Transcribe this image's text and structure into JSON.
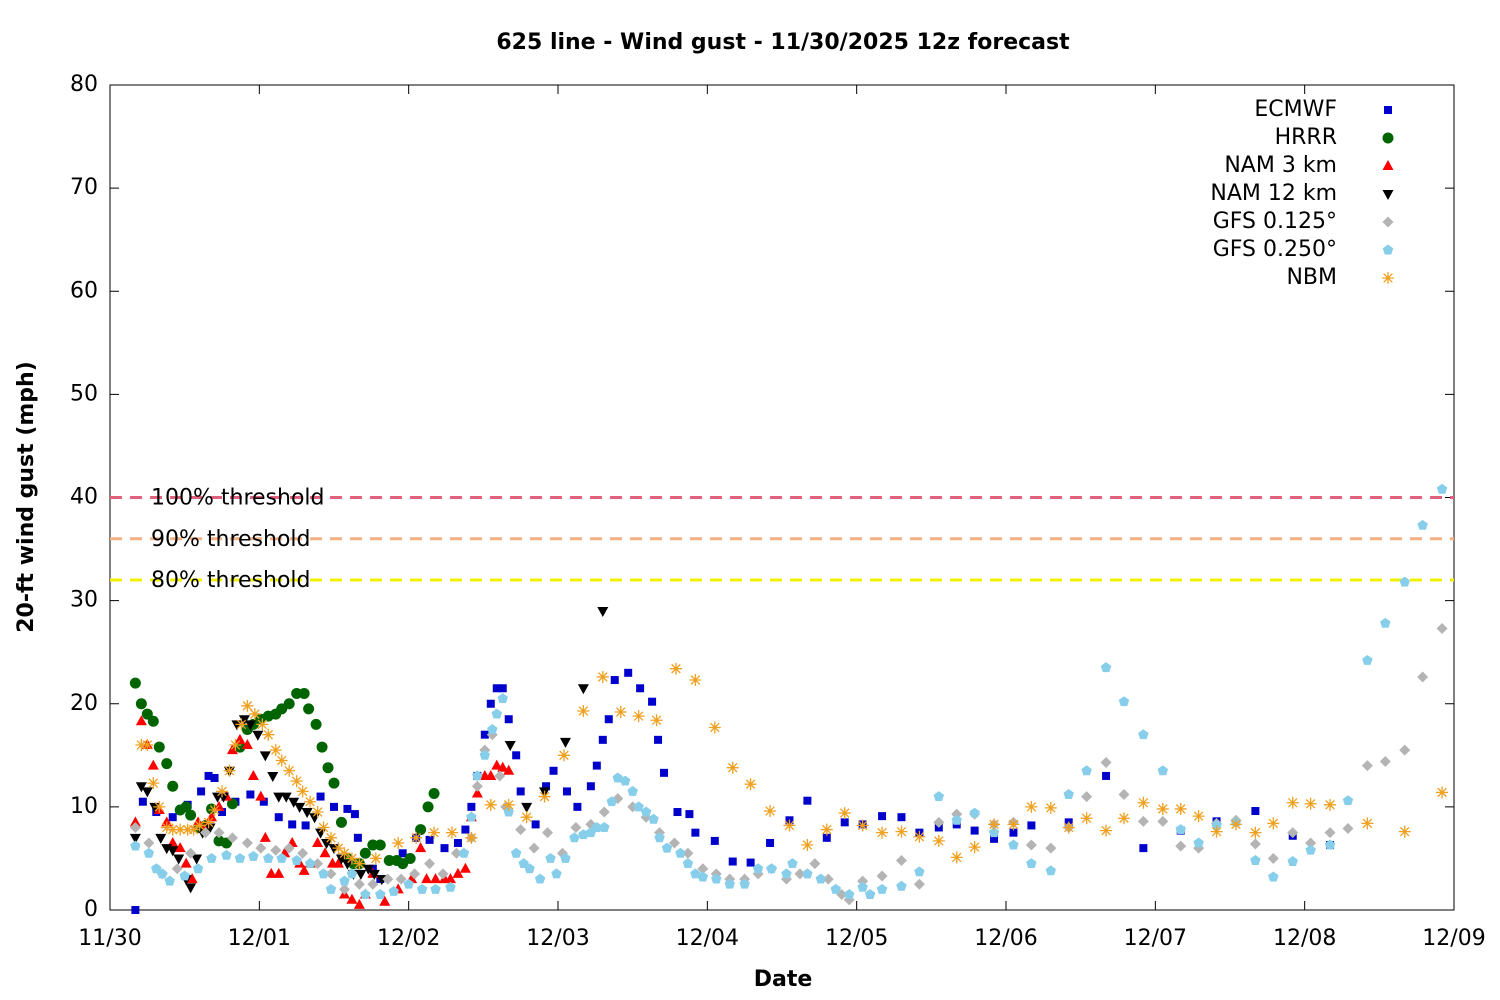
{
  "chart_data": {
    "type": "scatter",
    "title": "625 line - Wind gust - 11/30/2025 12z forecast",
    "xlabel": "Date",
    "ylabel": "20-ft wind gust (mph)",
    "xlim": [
      0,
      9
    ],
    "xticks": [
      {
        "value": 0,
        "label": "11/30"
      },
      {
        "value": 1,
        "label": "12/01"
      },
      {
        "value": 2,
        "label": "12/02"
      },
      {
        "value": 3,
        "label": "12/03"
      },
      {
        "value": 4,
        "label": "12/04"
      },
      {
        "value": 5,
        "label": "12/05"
      },
      {
        "value": 6,
        "label": "12/06"
      },
      {
        "value": 7,
        "label": "12/07"
      },
      {
        "value": 8,
        "label": "12/08"
      },
      {
        "value": 9,
        "label": "12/09"
      }
    ],
    "ylim": [
      0,
      80
    ],
    "yticks": [
      0,
      10,
      20,
      30,
      40,
      50,
      60,
      70,
      80
    ],
    "legend": "upper right",
    "thresholds": [
      {
        "label": "100% threshold",
        "value": 40,
        "color": "#e0607e"
      },
      {
        "label": "90% threshold",
        "value": 36,
        "color": "#f4b183"
      },
      {
        "label": "80% threshold",
        "value": 32,
        "color": "#f0f000"
      }
    ],
    "series": [
      {
        "name": "ECMWF",
        "color": "#0000cc",
        "marker": "square",
        "x": [
          0.17,
          0.22,
          0.31,
          0.42,
          0.52,
          0.61,
          0.66,
          0.7,
          0.75,
          0.84,
          0.94,
          1.03,
          1.13,
          1.22,
          1.31,
          1.41,
          1.5,
          1.59,
          1.64,
          1.66,
          1.76,
          1.81,
          1.96,
          2.05,
          2.14,
          2.24,
          2.33,
          2.38,
          2.42,
          2.46,
          2.51,
          2.55,
          2.59,
          2.63,
          2.67,
          2.72,
          2.75,
          2.85,
          2.92,
          2.97,
          3.06,
          3.13,
          3.22,
          3.26,
          3.3,
          3.34,
          3.38,
          3.47,
          3.55,
          3.63,
          3.67,
          3.71,
          3.8,
          3.88,
          3.92,
          4.05,
          4.17,
          4.29,
          4.42,
          4.55,
          4.67,
          4.8,
          4.92,
          5.04,
          5.17,
          5.3,
          5.42,
          5.55,
          5.67,
          5.79,
          5.92,
          6.05,
          6.17,
          6.42,
          6.67,
          6.92,
          7.17,
          7.41,
          7.67,
          7.92,
          8.17
        ],
        "values": [
          0,
          10.5,
          9.5,
          9,
          10.2,
          11.5,
          13,
          12.8,
          9.5,
          10.5,
          11.2,
          10.5,
          9,
          8.3,
          8.2,
          11,
          10,
          9.8,
          9.3,
          7,
          4,
          3,
          5.5,
          7,
          6.8,
          6,
          6.5,
          7.8,
          10,
          13,
          17,
          20,
          21.5,
          21.5,
          18.5,
          15,
          11.5,
          8.3,
          12,
          13.5,
          11.5,
          10,
          12,
          14,
          16.5,
          18.5,
          22.3,
          23,
          21.5,
          20.2,
          16.5,
          13.3,
          9.5,
          9.3,
          7.5,
          6.7,
          4.7,
          4.6,
          6.5,
          8.7,
          10.6,
          7,
          8.5,
          8.3,
          9.1,
          9,
          7.5,
          8,
          8.3,
          7.7,
          6.9,
          7.5,
          8.2,
          8.5,
          13,
          6,
          7.7,
          8.6,
          9.6,
          7.2,
          6.3
        ]
      },
      {
        "name": "HRRR",
        "color": "#006400",
        "marker": "circle",
        "x": [
          0.17,
          0.21,
          0.25,
          0.29,
          0.33,
          0.38,
          0.42,
          0.47,
          0.51,
          0.54,
          0.59,
          0.64,
          0.68,
          0.73,
          0.78,
          0.82,
          0.87,
          0.92,
          0.96,
          1.01,
          1.06,
          1.11,
          1.15,
          1.2,
          1.25,
          1.3,
          1.33,
          1.38,
          1.42,
          1.46,
          1.5,
          1.55,
          1.59,
          1.63,
          1.67,
          1.71,
          1.76,
          1.81,
          1.87,
          1.92,
          1.96,
          2.01,
          2.08,
          2.13,
          2.17
        ],
        "values": [
          22,
          20,
          19,
          18.3,
          15.8,
          14.2,
          12,
          9.7,
          10,
          9.2,
          8,
          8.2,
          9.8,
          6.7,
          6.5,
          10.3,
          15.8,
          17.5,
          18,
          18.5,
          18.8,
          19,
          19.5,
          20,
          21,
          21,
          19.5,
          18,
          15.8,
          13.8,
          12.3,
          8.5,
          5,
          4.5,
          4.5,
          5.5,
          6.3,
          6.3,
          4.8,
          4.8,
          4.5,
          5,
          7.8,
          10,
          11.3
        ]
      },
      {
        "name": "NAM 3 km",
        "color": "#ff0000",
        "marker": "triangle-up",
        "x": [
          0.17,
          0.21,
          0.25,
          0.29,
          0.33,
          0.38,
          0.42,
          0.47,
          0.51,
          0.55,
          0.59,
          0.64,
          0.68,
          0.73,
          0.78,
          0.82,
          0.87,
          0.92,
          0.96,
          1.01,
          1.04,
          1.08,
          1.13,
          1.17,
          1.22,
          1.27,
          1.3,
          1.34,
          1.39,
          1.44,
          1.49,
          1.53,
          1.57,
          1.62,
          1.67,
          1.71,
          1.76,
          1.84,
          1.93,
          2.02,
          2.08,
          2.12,
          2.18,
          2.24,
          2.28,
          2.33,
          2.38,
          2.42,
          2.46,
          2.51,
          2.55,
          2.59,
          2.63,
          2.67
        ],
        "values": [
          8.5,
          18.3,
          16,
          14,
          9.7,
          8.5,
          6.5,
          6,
          4.5,
          3,
          8.5,
          8,
          9,
          10,
          11,
          15.5,
          16.5,
          16,
          13,
          11,
          7,
          3.5,
          3.5,
          5.5,
          6.5,
          4.5,
          3.8,
          4.5,
          6.5,
          5.5,
          4.5,
          4.5,
          1.5,
          1,
          0.5,
          1.5,
          3.5,
          0.8,
          2,
          3,
          6,
          3,
          3,
          3,
          3,
          3.5,
          4,
          9,
          11.3,
          13,
          13,
          14,
          13.8,
          13.5
        ]
      },
      {
        "name": "NAM 12 km",
        "color": "#000000",
        "marker": "triangle-down",
        "x": [
          0.17,
          0.21,
          0.25,
          0.3,
          0.34,
          0.38,
          0.42,
          0.46,
          0.51,
          0.54,
          0.58,
          0.62,
          0.67,
          0.72,
          0.76,
          0.8,
          0.85,
          0.9,
          0.94,
          0.99,
          1.04,
          1.09,
          1.13,
          1.18,
          1.23,
          1.27,
          1.32,
          1.37,
          1.41,
          1.45,
          1.5,
          1.55,
          1.59,
          1.63,
          1.68,
          1.73,
          1.77,
          1.82,
          2.68,
          2.79,
          2.91,
          3.05,
          3.17,
          3.3
        ],
        "values": [
          7,
          12,
          11.5,
          10,
          7,
          6,
          5.8,
          5,
          3,
          2.2,
          5,
          7.5,
          8,
          11,
          11,
          13.5,
          18,
          18.5,
          18,
          17,
          15,
          13,
          11,
          11,
          10.5,
          10,
          9.5,
          9,
          7.5,
          6.5,
          6,
          5,
          4.5,
          3.5,
          3.5,
          4,
          3.5,
          3,
          16,
          10,
          11.5,
          16.3,
          21.5,
          29
        ]
      },
      {
        "name": "GFS 0.125°",
        "color": "#b4b4b4",
        "marker": "diamond",
        "x": [
          0.17,
          0.26,
          0.35,
          0.45,
          0.54,
          0.64,
          0.73,
          0.82,
          0.92,
          1.01,
          1.11,
          1.2,
          1.29,
          1.39,
          1.48,
          1.57,
          1.67,
          1.76,
          1.86,
          1.95,
          2.04,
          2.14,
          2.23,
          2.32,
          2.42,
          2.46,
          2.51,
          2.56,
          2.61,
          2.65,
          2.75,
          2.84,
          2.93,
          3.03,
          3.12,
          3.22,
          3.31,
          3.4,
          3.5,
          3.59,
          3.68,
          3.78,
          3.87,
          3.97,
          4.06,
          4.15,
          4.25,
          4.34,
          4.43,
          4.53,
          4.62,
          4.72,
          4.81,
          4.9,
          4.95,
          5.04,
          5.17,
          5.3,
          5.42,
          5.55,
          5.67,
          5.79,
          5.92,
          6.05,
          6.17,
          6.3,
          6.42,
          6.54,
          6.67,
          6.79,
          6.92,
          7.05,
          7.17,
          7.29,
          7.41,
          7.54,
          7.67,
          7.79,
          7.92,
          8.04,
          8.17,
          8.29,
          8.42,
          8.54,
          8.67,
          8.79,
          8.92
        ],
        "values": [
          8,
          6.5,
          3.5,
          4,
          5.5,
          7.5,
          7.5,
          7,
          6.5,
          6,
          5.8,
          6,
          5.5,
          4.5,
          3.5,
          2,
          2.5,
          2.5,
          3,
          3,
          3.5,
          4.5,
          3.5,
          5.5,
          7,
          12,
          15.5,
          17,
          13,
          10,
          7.8,
          6,
          7.5,
          5.5,
          8,
          8.3,
          9.5,
          10.8,
          10,
          9,
          7.5,
          6.5,
          5.5,
          4,
          3.5,
          3,
          3,
          3.5,
          4,
          3,
          3.5,
          4.5,
          3,
          1.5,
          1,
          2.8,
          3.3,
          4.8,
          2.5,
          8.5,
          9.3,
          9.3,
          8.3,
          8.5,
          6.3,
          6,
          8,
          11,
          14.3,
          11.2,
          8.6,
          8.6,
          6.2,
          6,
          8.4,
          8.7,
          6.4,
          5,
          7.5,
          6.5,
          7.5,
          7.9,
          14,
          14.4,
          15.5,
          22.6,
          27.3
        ]
      },
      {
        "name": "GFS 0.250°",
        "color": "#87ceeb",
        "marker": "pentagon",
        "x": [
          0.17,
          0.26,
          0.31,
          0.35,
          0.4,
          0.5,
          0.59,
          0.68,
          0.78,
          0.87,
          0.96,
          1.06,
          1.15,
          1.25,
          1.34,
          1.43,
          1.48,
          1.57,
          1.62,
          1.71,
          1.81,
          1.9,
          2.0,
          2.09,
          2.18,
          2.28,
          2.37,
          2.42,
          2.46,
          2.51,
          2.56,
          2.59,
          2.63,
          2.67,
          2.72,
          2.77,
          2.81,
          2.88,
          2.95,
          2.99,
          3.05,
          3.11,
          3.17,
          3.22,
          3.26,
          3.31,
          3.36,
          3.4,
          3.45,
          3.5,
          3.54,
          3.59,
          3.64,
          3.68,
          3.73,
          3.82,
          3.87,
          3.92,
          3.97,
          4.06,
          4.15,
          4.25,
          4.34,
          4.43,
          4.53,
          4.57,
          4.67,
          4.76,
          4.86,
          4.95,
          5.04,
          5.09,
          5.17,
          5.3,
          5.42,
          5.55,
          5.67,
          5.79,
          5.92,
          6.05,
          6.17,
          6.3,
          6.42,
          6.54,
          6.67,
          6.79,
          6.92,
          7.05,
          7.17,
          7.29,
          7.41,
          7.54,
          7.67,
          7.79,
          7.92,
          8.04,
          8.17,
          8.29,
          8.42,
          8.54,
          8.67,
          8.79,
          8.92
        ],
        "values": [
          6.2,
          5.5,
          4,
          3.5,
          2.8,
          3.3,
          4,
          5,
          5.3,
          5,
          5.2,
          5,
          5,
          4.8,
          4.5,
          3.5,
          2,
          2.8,
          3.5,
          1.5,
          1.5,
          1.8,
          2.5,
          2,
          2,
          2.2,
          5.5,
          9,
          13,
          15,
          17.5,
          19,
          20.5,
          9.5,
          5.5,
          4.5,
          4,
          3,
          5,
          3.5,
          5,
          7,
          7.3,
          7.5,
          8,
          8,
          10.5,
          12.8,
          12.5,
          11.5,
          10,
          9.5,
          8.8,
          7,
          6,
          5.5,
          4.5,
          3.5,
          3.2,
          3,
          2.5,
          2.5,
          4,
          4,
          3.5,
          4.5,
          3.5,
          3,
          2,
          1.5,
          2.2,
          1.5,
          2,
          2.3,
          3.7,
          11,
          8.7,
          9.4,
          7.5,
          6.3,
          4.5,
          3.8,
          11.2,
          13.5,
          23.5,
          20.2,
          17,
          13.5,
          7.8,
          6.5,
          8.2,
          8.5,
          4.8,
          3.2,
          4.7,
          5.8,
          6.3,
          10.6,
          24.2,
          27.8,
          31.8,
          37.3,
          40.8
        ]
      },
      {
        "name": "NBM",
        "color": "#f0a020",
        "marker": "asterisk",
        "x": [
          0.21,
          0.25,
          0.29,
          0.33,
          0.38,
          0.42,
          0.47,
          0.52,
          0.56,
          0.6,
          0.66,
          0.7,
          0.75,
          0.8,
          0.84,
          0.88,
          0.92,
          0.97,
          1.02,
          1.06,
          1.11,
          1.15,
          1.2,
          1.25,
          1.29,
          1.34,
          1.39,
          1.43,
          1.48,
          1.53,
          1.57,
          1.62,
          1.67,
          1.78,
          1.93,
          2.05,
          2.17,
          2.29,
          2.42,
          2.55,
          2.67,
          2.79,
          2.91,
          3.04,
          3.17,
          3.3,
          3.42,
          3.54,
          3.66,
          3.79,
          3.92,
          4.05,
          4.17,
          4.29,
          4.42,
          4.55,
          4.67,
          4.8,
          4.92,
          5.04,
          5.17,
          5.3,
          5.42,
          5.55,
          5.67,
          5.79,
          5.92,
          6.05,
          6.17,
          6.3,
          6.42,
          6.54,
          6.67,
          6.79,
          6.92,
          7.05,
          7.17,
          7.29,
          7.41,
          7.54,
          7.67,
          7.79,
          7.92,
          8.04,
          8.17,
          8.42,
          8.67,
          8.92
        ],
        "values": [
          16,
          16,
          12.3,
          10,
          8,
          7.8,
          7.8,
          7.8,
          7.8,
          8.2,
          8.5,
          9.7,
          11.5,
          13.5,
          16,
          18,
          19.8,
          19,
          18,
          17,
          15.5,
          14.5,
          13.5,
          12.5,
          11.5,
          10.5,
          9.5,
          8,
          7,
          6,
          5.5,
          5,
          4.5,
          5,
          6.5,
          7,
          7.5,
          7.5,
          7,
          10.2,
          10.2,
          9,
          11,
          15,
          19.3,
          22.6,
          19.2,
          18.8,
          18.4,
          23.4,
          22.3,
          17.7,
          13.8,
          12.2,
          9.6,
          8.2,
          6.3,
          7.8,
          9.4,
          8.2,
          7.5,
          7.6,
          7.1,
          6.7,
          5.1,
          6.1,
          8.3,
          8.3,
          10,
          9.9,
          8,
          8.9,
          7.7,
          8.9,
          10.4,
          9.8,
          9.8,
          9.1,
          7.6,
          8.3,
          7.5,
          8.4,
          10.4,
          10.3,
          10.2,
          8.4,
          7.6,
          11.4
        ]
      }
    ]
  }
}
